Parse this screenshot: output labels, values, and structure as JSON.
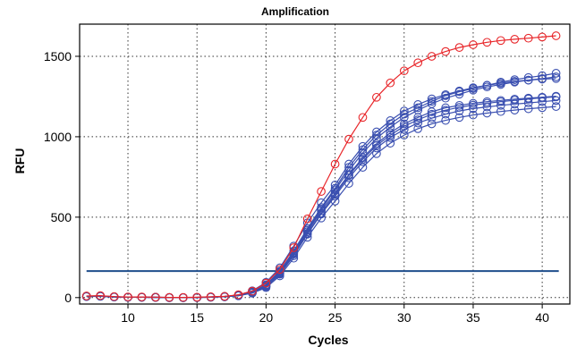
{
  "chart_data": {
    "type": "line",
    "title": "Amplification",
    "xlabel": "Cycles",
    "ylabel": "RFU",
    "xlim": [
      6.5,
      42
    ],
    "ylim": [
      -40,
      1700
    ],
    "xticks": [
      10,
      15,
      20,
      25,
      30,
      35,
      40
    ],
    "yticks": [
      0,
      500,
      1000,
      1500
    ],
    "grid": true,
    "threshold": {
      "value": 165,
      "color": "#1f4e8c"
    },
    "colors": {
      "red": "#e8262a",
      "blue": "#3a4fb0"
    },
    "x": [
      7,
      8,
      9,
      10,
      11,
      12,
      13,
      14,
      15,
      16,
      17,
      18,
      19,
      20,
      21,
      22,
      23,
      24,
      25,
      26,
      27,
      28,
      29,
      30,
      31,
      32,
      33,
      34,
      35,
      36,
      37,
      38,
      39,
      40,
      41
    ],
    "series": [
      {
        "color": "#e8262a",
        "values": [
          10,
          12,
          6,
          4,
          4,
          3,
          1,
          1,
          2,
          5,
          8,
          18,
          40,
          90,
          175,
          310,
          490,
          660,
          830,
          985,
          1120,
          1245,
          1335,
          1410,
          1460,
          1500,
          1530,
          1555,
          1572,
          1587,
          1598,
          1606,
          1613,
          1620,
          1628
        ]
      },
      {
        "color": "#3a4fb0",
        "values": [
          8,
          10,
          5,
          3,
          3,
          2,
          0,
          0,
          1,
          4,
          7,
          15,
          38,
          80,
          165,
          290,
          430,
          560,
          680,
          810,
          920,
          1010,
          1080,
          1140,
          1180,
          1220,
          1255,
          1280,
          1300,
          1320,
          1340,
          1355,
          1368,
          1380,
          1395
        ]
      },
      {
        "color": "#3a4fb0",
        "values": [
          9,
          11,
          5,
          3,
          3,
          2,
          0,
          0,
          1,
          4,
          6,
          14,
          35,
          75,
          160,
          280,
          420,
          550,
          670,
          790,
          900,
          990,
          1060,
          1120,
          1165,
          1205,
          1240,
          1265,
          1290,
          1310,
          1325,
          1340,
          1352,
          1362,
          1372
        ]
      },
      {
        "color": "#3a4fb0",
        "values": [
          7,
          9,
          4,
          2,
          2,
          1,
          0,
          0,
          1,
          3,
          6,
          13,
          33,
          72,
          150,
          270,
          410,
          540,
          650,
          765,
          870,
          955,
          1025,
          1080,
          1120,
          1155,
          1180,
          1195,
          1208,
          1218,
          1226,
          1234,
          1240,
          1246,
          1252
        ]
      },
      {
        "color": "#3a4fb0",
        "values": [
          8,
          9,
          5,
          3,
          2,
          1,
          0,
          0,
          1,
          3,
          5,
          12,
          30,
          68,
          145,
          260,
          395,
          520,
          630,
          745,
          845,
          930,
          995,
          1045,
          1085,
          1115,
          1140,
          1160,
          1175,
          1185,
          1195,
          1203,
          1210,
          1218,
          1225
        ]
      },
      {
        "color": "#3a4fb0",
        "values": [
          6,
          8,
          4,
          2,
          2,
          1,
          0,
          0,
          0,
          3,
          5,
          11,
          28,
          62,
          135,
          245,
          375,
          495,
          600,
          710,
          810,
          895,
          960,
          1010,
          1050,
          1080,
          1102,
          1120,
          1135,
          1147,
          1157,
          1166,
          1174,
          1181,
          1188
        ]
      },
      {
        "color": "#3a4fb0",
        "values": [
          9,
          10,
          5,
          3,
          3,
          2,
          1,
          0,
          1,
          4,
          7,
          16,
          42,
          95,
          185,
          320,
          465,
          590,
          700,
          830,
          940,
          1030,
          1100,
          1160,
          1200,
          1235,
          1262,
          1285,
          1305,
          1320,
          1333,
          1344,
          1352,
          1358,
          1362
        ]
      },
      {
        "color": "#3a4fb0",
        "values": [
          7,
          9,
          4,
          3,
          2,
          1,
          0,
          0,
          1,
          3,
          6,
          12,
          32,
          70,
          155,
          275,
          400,
          525,
          640,
          760,
          860,
          945,
          1010,
          1065,
          1105,
          1140,
          1165,
          1183,
          1197,
          1208,
          1218,
          1227,
          1235,
          1242,
          1248
        ]
      }
    ]
  }
}
